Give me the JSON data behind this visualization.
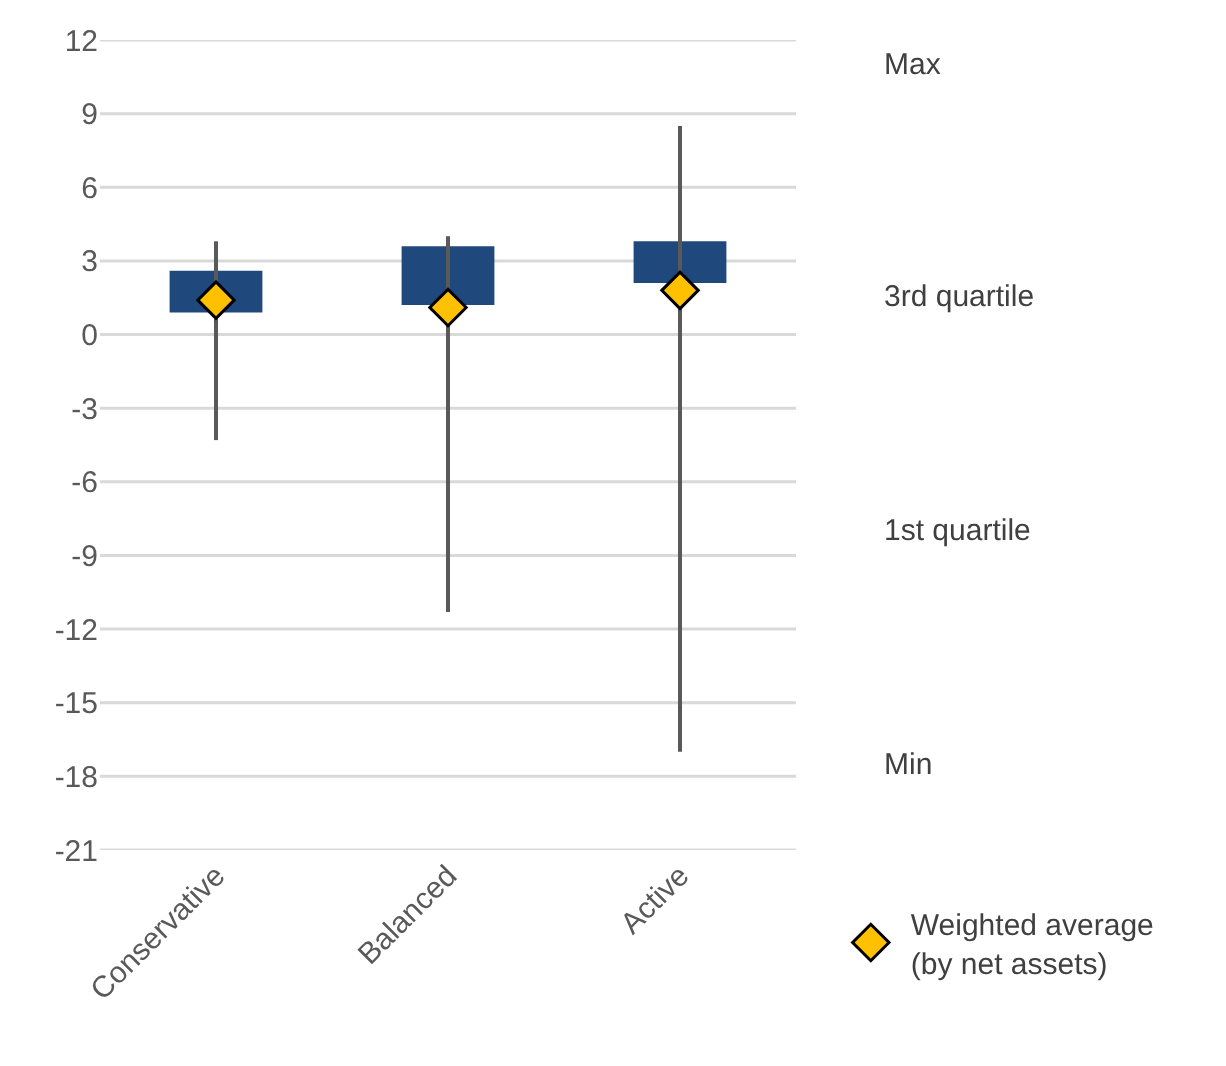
{
  "chart_data": {
    "type": "box",
    "categories": [
      "Conservative",
      "Balanced",
      "Active"
    ],
    "boxes": [
      {
        "low": -4.3,
        "q1": 0.9,
        "q3": 2.6,
        "high": 3.8
      },
      {
        "low": -11.3,
        "q1": 1.2,
        "q3": 3.6,
        "high": 4.0
      },
      {
        "low": -17.0,
        "q1": 2.1,
        "q3": 3.8,
        "high": 8.5
      }
    ],
    "color": "#1f497d",
    "series": [
      {
        "type": "scatter",
        "name": "Weighted average\n(by net assets)",
        "color": "#ffc000",
        "marker": "diamond",
        "values": [
          1.4,
          1.1,
          1.8
        ]
      }
    ],
    "ylim": [
      -21,
      12
    ],
    "yticks": [
      -21,
      -18,
      -15,
      -12,
      -9,
      -6,
      -3,
      0,
      3,
      6,
      9,
      12
    ],
    "grid": "y",
    "legend": "bottom right",
    "annotations": [
      "Max",
      "3rd quartile",
      "1st quartile",
      "Min"
    ]
  }
}
